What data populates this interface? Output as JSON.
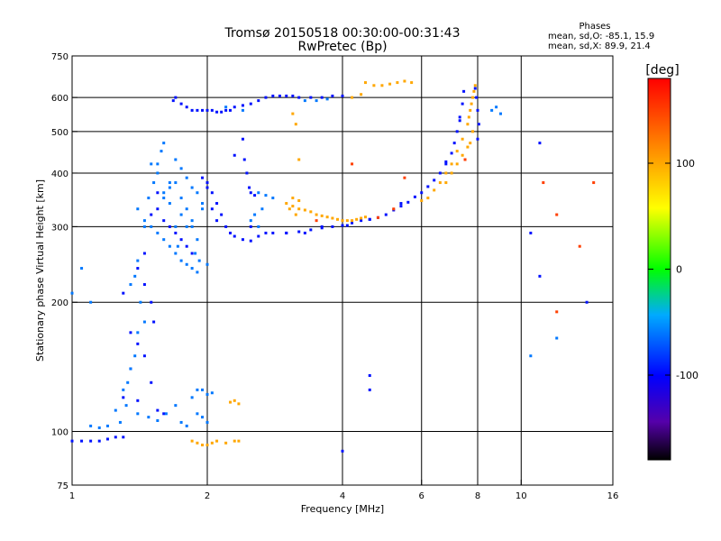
{
  "chart_data": {
    "type": "scatter",
    "title": "Tromsø 20150518 00:30:00-00:31:43",
    "subtitle": "RwPretec (Bp)",
    "xlabel": "Frequency [MHz]",
    "ylabel": "Stationary phase Virtual Height [km]",
    "x_scale": "log",
    "y_scale": "log",
    "xlim": [
      1,
      16
    ],
    "ylim": [
      75,
      750
    ],
    "x_ticks": [
      1,
      2,
      4,
      6,
      8,
      10,
      16
    ],
    "y_ticks": [
      75,
      100,
      200,
      300,
      400,
      500,
      600,
      750
    ],
    "x_grid": [
      2,
      4,
      6,
      8,
      10
    ],
    "y_grid": [
      100,
      200,
      300,
      400,
      500,
      600
    ],
    "stats": {
      "heading": "Phases",
      "line1": "mean, sd,O: -85.1, 15.9",
      "line2": "mean, sd,X:  89.9, 21.4"
    },
    "colorbar": {
      "label": "[deg]",
      "range": [
        -180,
        180
      ],
      "ticks": [
        100,
        0,
        -100
      ]
    },
    "series": [
      {
        "phase_deg": -95,
        "points": [
          [
            1.0,
            95
          ],
          [
            1.05,
            95
          ],
          [
            1.1,
            95
          ],
          [
            1.15,
            95
          ],
          [
            1.2,
            96
          ],
          [
            1.25,
            97
          ],
          [
            1.3,
            97
          ],
          [
            1.68,
            590
          ],
          [
            1.7,
            600
          ],
          [
            1.75,
            580
          ],
          [
            1.8,
            570
          ],
          [
            1.85,
            560
          ],
          [
            1.9,
            560
          ],
          [
            1.95,
            560
          ],
          [
            2.0,
            560
          ],
          [
            2.05,
            560
          ],
          [
            2.1,
            555
          ],
          [
            2.15,
            555
          ],
          [
            2.2,
            560
          ],
          [
            2.25,
            560
          ],
          [
            2.3,
            570
          ],
          [
            2.4,
            575
          ],
          [
            2.5,
            580
          ],
          [
            2.6,
            590
          ],
          [
            2.7,
            600
          ],
          [
            2.8,
            605
          ],
          [
            2.9,
            605
          ],
          [
            3.0,
            605
          ],
          [
            3.1,
            605
          ],
          [
            3.2,
            600
          ],
          [
            3.4,
            600
          ],
          [
            3.6,
            600
          ],
          [
            3.8,
            605
          ],
          [
            4.0,
            605
          ],
          [
            2.0,
            370
          ],
          [
            2.05,
            360
          ],
          [
            2.1,
            340
          ],
          [
            2.15,
            320
          ],
          [
            2.2,
            300
          ],
          [
            2.25,
            290
          ],
          [
            2.3,
            285
          ],
          [
            2.4,
            280
          ],
          [
            2.5,
            278
          ],
          [
            2.6,
            285
          ],
          [
            2.7,
            290
          ],
          [
            2.8,
            290
          ],
          [
            3.0,
            290
          ],
          [
            3.2,
            292
          ],
          [
            3.4,
            295
          ],
          [
            3.6,
            298
          ],
          [
            3.8,
            300
          ],
          [
            4.0,
            302
          ],
          [
            4.2,
            306
          ],
          [
            4.4,
            310
          ],
          [
            4.6,
            312
          ],
          [
            4.8,
            315
          ],
          [
            5.0,
            320
          ],
          [
            5.2,
            328
          ],
          [
            5.4,
            335
          ],
          [
            5.6,
            342
          ],
          [
            5.8,
            352
          ],
          [
            6.0,
            360
          ],
          [
            6.2,
            372
          ],
          [
            6.4,
            385
          ],
          [
            6.6,
            400
          ],
          [
            6.8,
            420
          ],
          [
            7.0,
            445
          ],
          [
            7.1,
            470
          ],
          [
            7.2,
            500
          ],
          [
            7.3,
            540
          ],
          [
            7.4,
            580
          ],
          [
            7.45,
            620
          ],
          [
            7.9,
            630
          ],
          [
            7.95,
            600
          ],
          [
            8.0,
            560
          ],
          [
            8.05,
            520
          ],
          [
            8.0,
            480
          ],
          [
            2.4,
            480
          ],
          [
            2.42,
            430
          ],
          [
            2.45,
            400
          ],
          [
            2.48,
            370
          ],
          [
            2.5,
            360
          ],
          [
            2.55,
            355
          ],
          [
            1.95,
            390
          ],
          [
            2.0,
            380
          ],
          [
            2.05,
            330
          ],
          [
            2.1,
            310
          ],
          [
            1.5,
            320
          ],
          [
            1.55,
            330
          ],
          [
            1.6,
            310
          ],
          [
            1.65,
            300
          ],
          [
            1.7,
            290
          ],
          [
            1.75,
            280
          ],
          [
            1.8,
            270
          ],
          [
            1.85,
            260
          ],
          [
            1.45,
            220
          ],
          [
            1.5,
            200
          ],
          [
            1.52,
            180
          ],
          [
            1.4,
            160
          ],
          [
            1.35,
            140
          ],
          [
            1.3,
            120
          ],
          [
            1.4,
            118
          ],
          [
            1.55,
            112
          ],
          [
            1.6,
            110
          ],
          [
            1.5,
            130
          ],
          [
            1.45,
            150
          ],
          [
            1.35,
            170
          ],
          [
            1.3,
            210
          ],
          [
            1.4,
            240
          ],
          [
            1.45,
            260
          ],
          [
            1.55,
            360
          ],
          [
            2.3,
            440
          ],
          [
            3.0,
            290
          ],
          [
            2.5,
            300
          ],
          [
            3.3,
            290
          ],
          [
            3.6,
            300
          ],
          [
            4.1,
            302
          ],
          [
            4.6,
            312
          ],
          [
            5.4,
            340
          ],
          [
            6.8,
            425
          ],
          [
            7.3,
            530
          ],
          [
            4.6,
            135
          ],
          [
            4.6,
            125
          ],
          [
            4.0,
            90
          ],
          [
            11.0,
            470
          ],
          [
            11.0,
            230
          ],
          [
            14.0,
            200
          ],
          [
            10.5,
            290
          ]
        ]
      },
      {
        "phase_deg": -60,
        "points": [
          [
            1.4,
            330
          ],
          [
            1.45,
            310
          ],
          [
            1.5,
            300
          ],
          [
            1.55,
            290
          ],
          [
            1.6,
            280
          ],
          [
            1.65,
            270
          ],
          [
            1.7,
            260
          ],
          [
            1.75,
            250
          ],
          [
            1.8,
            245
          ],
          [
            1.85,
            240
          ],
          [
            1.9,
            235
          ],
          [
            1.95,
            330
          ],
          [
            1.6,
            350
          ],
          [
            1.65,
            370
          ],
          [
            1.7,
            380
          ],
          [
            1.55,
            400
          ],
          [
            1.5,
            420
          ],
          [
            1.58,
            450
          ],
          [
            1.6,
            470
          ],
          [
            1.7,
            430
          ],
          [
            1.75,
            410
          ],
          [
            1.8,
            390
          ],
          [
            1.85,
            370
          ],
          [
            1.9,
            360
          ],
          [
            1.95,
            340
          ],
          [
            1.52,
            380
          ],
          [
            1.48,
            350
          ],
          [
            1.4,
            250
          ],
          [
            1.38,
            230
          ],
          [
            1.35,
            220
          ],
          [
            1.42,
            200
          ],
          [
            1.45,
            180
          ],
          [
            1.4,
            170
          ],
          [
            1.38,
            150
          ],
          [
            1.35,
            140
          ],
          [
            1.33,
            130
          ],
          [
            1.3,
            125
          ],
          [
            1.32,
            115
          ],
          [
            1.4,
            110
          ],
          [
            1.48,
            108
          ],
          [
            1.55,
            106
          ],
          [
            1.62,
            110
          ],
          [
            1.7,
            115
          ],
          [
            1.75,
            105
          ],
          [
            1.8,
            103
          ],
          [
            1.85,
            120
          ],
          [
            1.9,
            125
          ],
          [
            1.95,
            125
          ],
          [
            2.0,
            122
          ],
          [
            2.05,
            123
          ],
          [
            1.9,
            110
          ],
          [
            1.95,
            108
          ],
          [
            2.0,
            105
          ],
          [
            1.25,
            112
          ],
          [
            1.28,
            105
          ],
          [
            1.2,
            103
          ],
          [
            1.15,
            102
          ],
          [
            1.1,
            103
          ],
          [
            2.6,
            360
          ],
          [
            2.7,
            355
          ],
          [
            2.8,
            350
          ],
          [
            2.65,
            330
          ],
          [
            2.55,
            320
          ],
          [
            2.5,
            310
          ],
          [
            2.6,
            300
          ],
          [
            1.9,
            280
          ],
          [
            1.85,
            300
          ],
          [
            1.75,
            320
          ],
          [
            1.65,
            340
          ],
          [
            1.6,
            360
          ],
          [
            1.55,
            420
          ],
          [
            1.45,
            300
          ],
          [
            1.7,
            300
          ],
          [
            1.72,
            270
          ],
          [
            1.8,
            300
          ],
          [
            1.88,
            260
          ],
          [
            1.92,
            250
          ],
          [
            2.0,
            245
          ],
          [
            1.65,
            380
          ],
          [
            1.75,
            350
          ],
          [
            1.8,
            330
          ],
          [
            1.85,
            310
          ],
          [
            1.05,
            240
          ],
          [
            1.1,
            200
          ],
          [
            1.0,
            210
          ],
          [
            3.3,
            590
          ],
          [
            3.5,
            590
          ],
          [
            3.7,
            595
          ],
          [
            2.2,
            570
          ],
          [
            2.4,
            560
          ],
          [
            8.8,
            570
          ],
          [
            9.0,
            550
          ],
          [
            8.6,
            560
          ],
          [
            10.5,
            150
          ],
          [
            12.0,
            165
          ]
        ]
      },
      {
        "phase_deg": 100,
        "points": [
          [
            3.0,
            340
          ],
          [
            3.1,
            335
          ],
          [
            3.2,
            330
          ],
          [
            3.3,
            328
          ],
          [
            3.4,
            325
          ],
          [
            3.5,
            320
          ],
          [
            3.6,
            318
          ],
          [
            3.7,
            316
          ],
          [
            3.8,
            314
          ],
          [
            3.9,
            312
          ],
          [
            4.0,
            310
          ],
          [
            4.1,
            310
          ],
          [
            4.2,
            310
          ],
          [
            4.3,
            312
          ],
          [
            4.4,
            314
          ],
          [
            4.5,
            316
          ],
          [
            3.1,
            350
          ],
          [
            3.2,
            345
          ],
          [
            3.05,
            330
          ],
          [
            3.15,
            320
          ],
          [
            4.5,
            650
          ],
          [
            4.7,
            640
          ],
          [
            4.9,
            640
          ],
          [
            5.1,
            645
          ],
          [
            5.3,
            650
          ],
          [
            5.5,
            655
          ],
          [
            5.7,
            650
          ],
          [
            4.2,
            600
          ],
          [
            4.4,
            610
          ],
          [
            6.0,
            345
          ],
          [
            6.2,
            350
          ],
          [
            6.4,
            365
          ],
          [
            6.6,
            380
          ],
          [
            6.8,
            400
          ],
          [
            7.0,
            420
          ],
          [
            7.2,
            450
          ],
          [
            7.4,
            480
          ],
          [
            7.6,
            520
          ],
          [
            7.7,
            560
          ],
          [
            7.8,
            600
          ],
          [
            7.9,
            640
          ],
          [
            7.8,
            500
          ],
          [
            7.6,
            460
          ],
          [
            7.4,
            440
          ],
          [
            7.2,
            420
          ],
          [
            7.0,
            400
          ],
          [
            6.8,
            380
          ],
          [
            7.65,
            540
          ],
          [
            7.75,
            580
          ],
          [
            7.85,
            620
          ],
          [
            7.7,
            470
          ],
          [
            1.85,
            95
          ],
          [
            1.9,
            94
          ],
          [
            1.95,
            93
          ],
          [
            2.0,
            93
          ],
          [
            2.05,
            94
          ],
          [
            2.1,
            95
          ],
          [
            2.2,
            94
          ],
          [
            2.3,
            95
          ],
          [
            2.35,
            95
          ],
          [
            2.25,
            117
          ],
          [
            2.3,
            118
          ],
          [
            2.35,
            116
          ],
          [
            3.1,
            550
          ],
          [
            3.15,
            520
          ],
          [
            3.2,
            430
          ]
        ]
      },
      {
        "phase_deg": 150,
        "points": [
          [
            3.5,
            310
          ],
          [
            4.8,
            315
          ],
          [
            5.2,
            330
          ],
          [
            7.5,
            430
          ],
          [
            4.2,
            420
          ],
          [
            12.0,
            320
          ],
          [
            13.5,
            270
          ],
          [
            14.5,
            380
          ],
          [
            11.2,
            380
          ],
          [
            12.0,
            190
          ],
          [
            5.5,
            390
          ]
        ]
      }
    ]
  }
}
